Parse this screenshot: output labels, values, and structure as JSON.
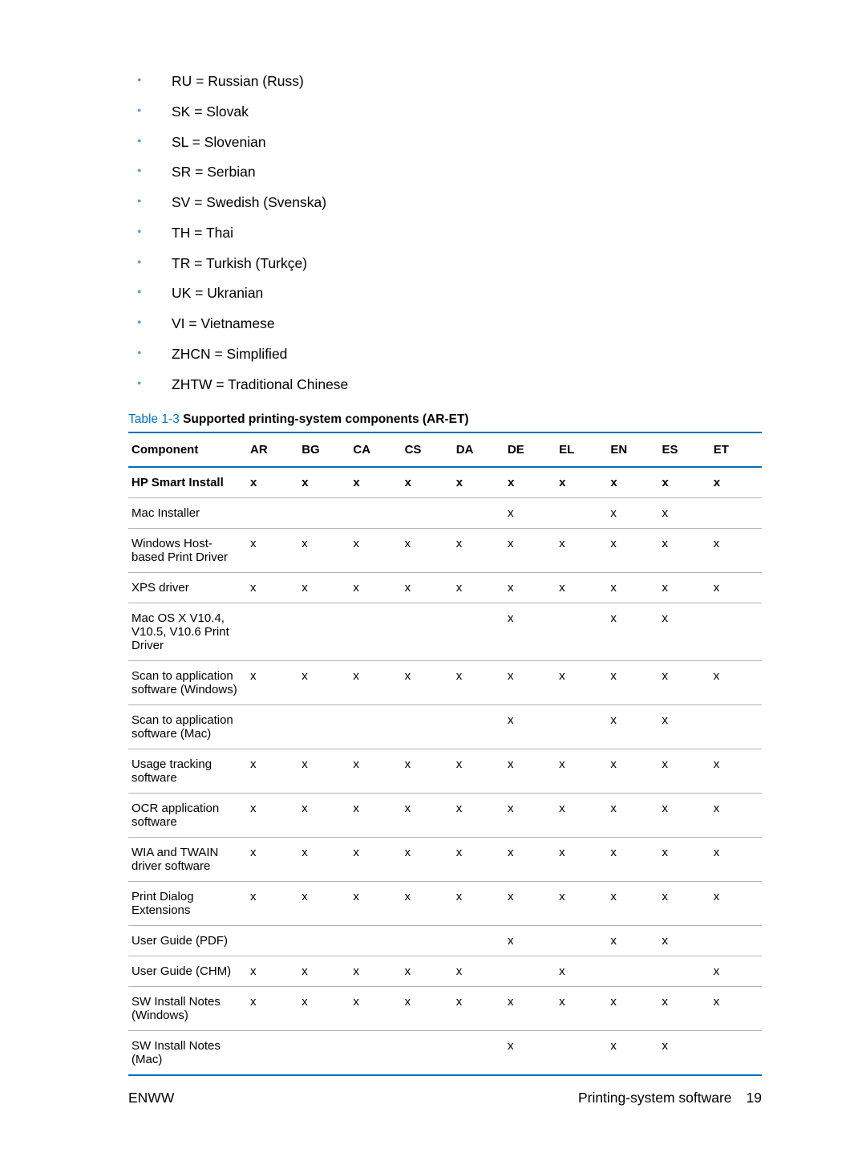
{
  "languages": [
    "RU = Russian (Russ)",
    "SK = Slovak",
    "SL = Slovenian",
    "SR = Serbian",
    "SV = Swedish (Svenska)",
    "TH = Thai",
    "TR = Turkish (Turkçe)",
    "UK = Ukranian",
    "VI = Vietnamese",
    "ZHCN = Simplified",
    "ZHTW = Traditional Chinese"
  ],
  "table": {
    "number": "Table 1-3",
    "caption": "  Supported printing-system components (AR-ET)",
    "columns": [
      "Component",
      "AR",
      "BG",
      "CA",
      "CS",
      "DA",
      "DE",
      "EL",
      "EN",
      "ES",
      "ET"
    ],
    "rows": [
      {
        "bold": true,
        "cells": [
          "HP Smart Install",
          "x",
          "x",
          "x",
          "x",
          "x",
          "x",
          "x",
          "x",
          "x",
          "x"
        ]
      },
      {
        "bold": false,
        "cells": [
          "Mac Installer",
          "",
          "",
          "",
          "",
          "",
          "x",
          "",
          "x",
          "x",
          ""
        ]
      },
      {
        "bold": false,
        "cells": [
          "Windows Host-based Print Driver",
          "x",
          "x",
          "x",
          "x",
          "x",
          "x",
          "x",
          "x",
          "x",
          "x"
        ]
      },
      {
        "bold": false,
        "cells": [
          "XPS driver",
          "x",
          "x",
          "x",
          "x",
          "x",
          "x",
          "x",
          "x",
          "x",
          "x"
        ]
      },
      {
        "bold": false,
        "cells": [
          "Mac OS X V10.4, V10.5, V10.6 Print Driver",
          "",
          "",
          "",
          "",
          "",
          "x",
          "",
          "x",
          "x",
          ""
        ]
      },
      {
        "bold": false,
        "cells": [
          "Scan to application software (Windows)",
          "x",
          "x",
          "x",
          "x",
          "x",
          "x",
          "x",
          "x",
          "x",
          "x"
        ]
      },
      {
        "bold": false,
        "cells": [
          "Scan to application software (Mac)",
          "",
          "",
          "",
          "",
          "",
          "x",
          "",
          "x",
          "x",
          ""
        ]
      },
      {
        "bold": false,
        "cells": [
          "Usage tracking software",
          "x",
          "x",
          "x",
          "x",
          "x",
          "x",
          "x",
          "x",
          "x",
          "x"
        ]
      },
      {
        "bold": false,
        "cells": [
          "OCR application software",
          "x",
          "x",
          "x",
          "x",
          "x",
          "x",
          "x",
          "x",
          "x",
          "x"
        ]
      },
      {
        "bold": false,
        "cells": [
          "WIA and TWAIN driver software",
          "x",
          "x",
          "x",
          "x",
          "x",
          "x",
          "x",
          "x",
          "x",
          "x"
        ]
      },
      {
        "bold": false,
        "cells": [
          "Print Dialog Extensions",
          "x",
          "x",
          "x",
          "x",
          "x",
          "x",
          "x",
          "x",
          "x",
          "x"
        ]
      },
      {
        "bold": false,
        "cells": [
          "User Guide (PDF)",
          "",
          "",
          "",
          "",
          "",
          "x",
          "",
          "x",
          "x",
          ""
        ]
      },
      {
        "bold": false,
        "cells": [
          "User Guide (CHM)",
          "x",
          "x",
          "x",
          "x",
          "x",
          "",
          "x",
          "",
          "",
          "x"
        ]
      },
      {
        "bold": false,
        "cells": [
          "SW Install Notes (Windows)",
          "x",
          "x",
          "x",
          "x",
          "x",
          "x",
          "x",
          "x",
          "x",
          "x"
        ]
      },
      {
        "bold": false,
        "cells": [
          "SW Install Notes (Mac)",
          "",
          "",
          "",
          "",
          "",
          "x",
          "",
          "x",
          "x",
          ""
        ]
      }
    ]
  },
  "footer": {
    "left": "ENWW",
    "right_label": "Printing-system software",
    "page": "19"
  }
}
